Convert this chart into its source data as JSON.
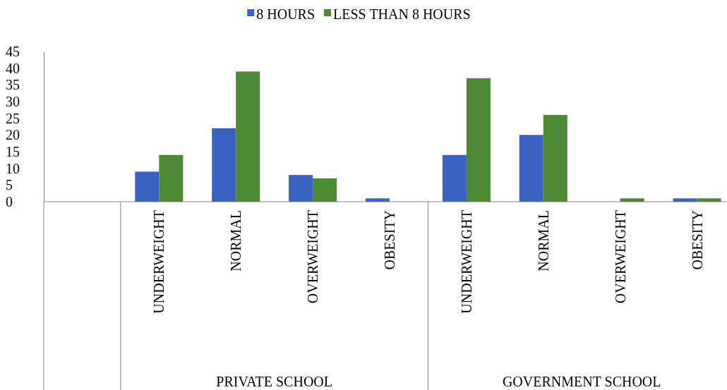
{
  "chart_data": {
    "type": "bar",
    "categories": [
      null,
      "UNDERWEIGHT",
      "NORMAL",
      "OVERWEIGHT",
      "OBESITY",
      "UNDERWEIGHT",
      "NORMAL",
      "OVERWEIGHT",
      "OBESITY"
    ],
    "series": [
      {
        "name": "8 HOURS",
        "color": "#3a62c0",
        "values": [
          null,
          9,
          22,
          8,
          1,
          14,
          20,
          0,
          1
        ]
      },
      {
        "name": "LESS THAN 8 HOURS",
        "color": "#4e8a34",
        "values": [
          null,
          14,
          39,
          7,
          0,
          37,
          26,
          1,
          1
        ]
      }
    ],
    "annotations": [
      "PRIVATE SCHOOL",
      "GOVERNMENT SCHOOL"
    ],
    "ylim": [
      0,
      45
    ],
    "yticks": [
      0,
      5,
      10,
      15,
      20,
      25,
      30,
      35,
      40,
      45
    ],
    "grid": false,
    "legend": "top"
  }
}
